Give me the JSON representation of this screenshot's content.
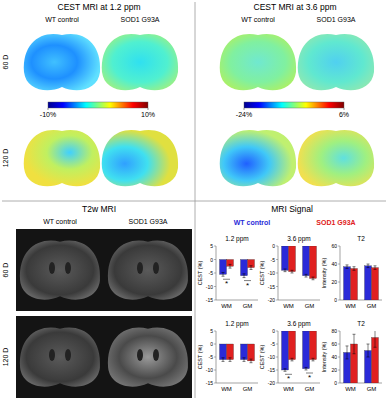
{
  "figure": {
    "panels": [
      {
        "title": "CEST MRI at 1.2 ppm",
        "columns": [
          "WT control",
          "SOD1 G93A"
        ],
        "rows": [
          "60 D",
          "120 D"
        ],
        "colorbar": {
          "range": [
            -10,
            10
          ],
          "ticks": [
            {
              "value": -10,
              "label": "-10%"
            },
            {
              "value": 10,
              "label": "10%"
            }
          ]
        }
      },
      {
        "title": "CEST MRI at 3.6 ppm",
        "columns": [
          "WT control",
          "SOD1 G93A"
        ],
        "colorbar": {
          "range": [
            -24,
            6
          ],
          "ticks": [
            {
              "value": -24,
              "label": "-24%"
            },
            {
              "value": 6,
              "label": "6%"
            }
          ]
        }
      },
      {
        "title": "T2w MRI",
        "columns": [
          "WT control",
          "SOD1 G93A"
        ],
        "rows": [
          "60 D",
          "120 D"
        ]
      }
    ],
    "signal_title": "MRI Signal"
  },
  "chart_data": [
    {
      "type": "bar",
      "title": "1.2 ppm",
      "y_label": "CEST (%)",
      "categories": [
        "WM",
        "GM"
      ],
      "series": [
        {
          "name": "WT control",
          "color": "#2a2ad8",
          "values": [
            -5.5,
            -6
          ],
          "errors": [
            0.7,
            0.7
          ]
        },
        {
          "name": "SOD1 G93A",
          "color": "#e02020",
          "values": [
            -2.5,
            -3
          ],
          "errors": [
            0.7,
            0.7
          ]
        }
      ],
      "ylim": [
        -15,
        5
      ],
      "yticks": [
        -15,
        -10,
        -5,
        0,
        5
      ],
      "annotations": [
        {
          "text": "*",
          "category": 0
        },
        {
          "text": "*",
          "category": 1
        }
      ]
    },
    {
      "type": "bar",
      "title": "3.6 ppm",
      "y_label": "CEST (%)",
      "categories": [
        "WM",
        "GM"
      ],
      "series": [
        {
          "color": "#2a2ad8",
          "values": [
            -9,
            -11
          ],
          "errors": [
            0.5,
            0.5
          ]
        },
        {
          "color": "#e02020",
          "values": [
            -9.5,
            -12
          ],
          "errors": [
            0.5,
            0.5
          ]
        }
      ],
      "ylim": [
        -20,
        0
      ],
      "yticks": [
        -20,
        -15,
        -10,
        -5,
        0
      ]
    },
    {
      "type": "bar",
      "title": "T2",
      "y_label": "Intensity (%)",
      "categories": [
        "WM",
        "GM"
      ],
      "series": [
        {
          "color": "#2a2ad8",
          "values": [
            37,
            38
          ],
          "errors": [
            2,
            2
          ]
        },
        {
          "color": "#e02020",
          "values": [
            35,
            36
          ],
          "errors": [
            2,
            2
          ]
        }
      ],
      "ylim": [
        0,
        60
      ],
      "yticks": [
        0,
        20,
        40,
        60
      ]
    },
    {
      "type": "bar",
      "title": "1.2 ppm",
      "y_label": "CEST (%)",
      "categories": [
        "WM",
        "GM"
      ],
      "series": [
        {
          "color": "#2a2ad8",
          "values": [
            -6,
            -6
          ],
          "errors": [
            0.7,
            0.7
          ]
        },
        {
          "color": "#e02020",
          "values": [
            -6,
            -6.5
          ],
          "errors": [
            0.7,
            0.7
          ]
        }
      ],
      "ylim": [
        -15,
        5
      ],
      "yticks": [
        -15,
        -10,
        -5,
        0,
        5
      ]
    },
    {
      "type": "bar",
      "title": "3.6 ppm",
      "y_label": "CEST (%)",
      "categories": [
        "WM",
        "GM"
      ],
      "series": [
        {
          "color": "#2a2ad8",
          "values": [
            -15,
            -14.5
          ],
          "errors": [
            0.5,
            0.5
          ]
        },
        {
          "color": "#e02020",
          "values": [
            -11,
            -11
          ],
          "errors": [
            0.5,
            0.5
          ]
        }
      ],
      "ylim": [
        -20,
        0
      ],
      "yticks": [
        -20,
        -15,
        -10,
        -5,
        0
      ],
      "annotations": [
        {
          "text": "*",
          "category": 0
        },
        {
          "text": "*",
          "category": 1
        }
      ]
    },
    {
      "type": "bar",
      "title": "T2",
      "y_label": "Intensity (%)",
      "categories": [
        "WM",
        "GM"
      ],
      "series": [
        {
          "color": "#2a2ad8",
          "values": [
            47,
            50
          ],
          "errors": [
            10,
            10
          ]
        },
        {
          "color": "#e02020",
          "values": [
            60,
            70
          ],
          "errors": [
            15,
            15
          ]
        }
      ],
      "ylim": [
        0,
        80
      ],
      "yticks": [
        0,
        20,
        40,
        60,
        80
      ]
    }
  ]
}
